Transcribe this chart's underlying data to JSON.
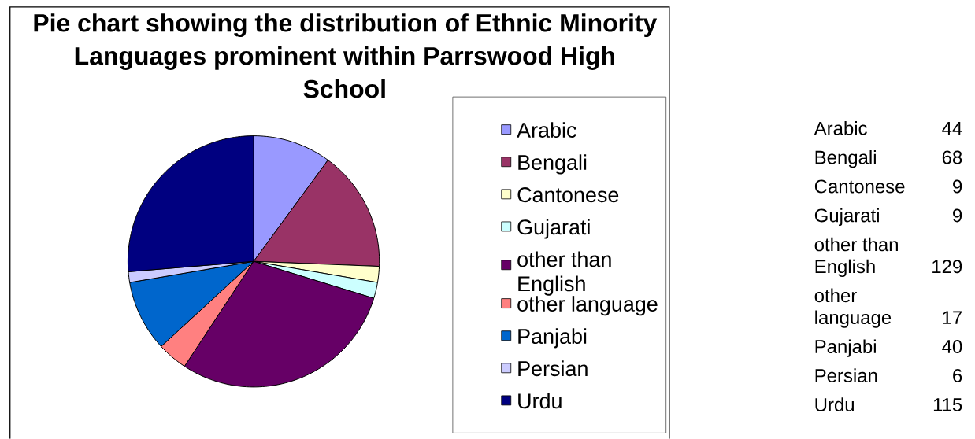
{
  "chart_data": {
    "type": "pie",
    "title": "Pie chart showing the distribution of Ethnic Minority Languages prominent within Parrswood High School",
    "categories": [
      "Arabic",
      "Bengali",
      "Cantonese",
      "Gujarati",
      "other than English",
      "other language",
      "Panjabi",
      "Persian",
      "Urdu"
    ],
    "values": [
      44,
      68,
      9,
      9,
      129,
      17,
      40,
      6,
      115
    ],
    "colors": [
      "#9999ff",
      "#993366",
      "#ffffcc",
      "#ccffff",
      "#660066",
      "#ff8080",
      "#0066cc",
      "#ccccff",
      "#000080"
    ],
    "legend": "right",
    "data_labels": true
  }
}
